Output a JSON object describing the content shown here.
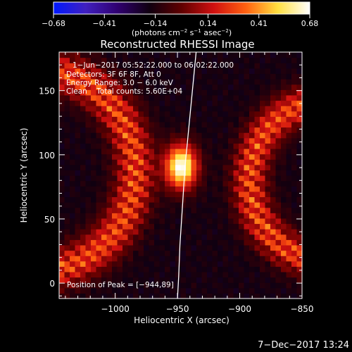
{
  "chart_data": {
    "type": "heatmap",
    "title": "Reconstructed RHESSI Image",
    "xlabel": "Heliocentric X (arcsec)",
    "ylabel": "Heliocentric Y (arcsec)",
    "xlim": [
      -1045,
      -850
    ],
    "ylim": [
      -12,
      180
    ],
    "x_ticks": [
      {
        "value": -1000,
        "label": "−1000"
      },
      {
        "value": -950,
        "label": "−950"
      },
      {
        "value": -900,
        "label": "−900"
      },
      {
        "value": -850,
        "label": "−850"
      }
    ],
    "y_ticks": [
      {
        "value": 0,
        "label": "0"
      },
      {
        "value": 50,
        "label": "50"
      },
      {
        "value": 100,
        "label": "100"
      },
      {
        "value": 150,
        "label": "150"
      }
    ],
    "colorbar": {
      "range": [
        -0.68,
        0.68
      ],
      "ticks": [
        {
          "value": -0.68,
          "label": "−0.68"
        },
        {
          "value": -0.41,
          "label": "−0.41"
        },
        {
          "value": -0.14,
          "label": "−0.14"
        },
        {
          "value": 0.14,
          "label": "0.14"
        },
        {
          "value": 0.41,
          "label": "0.41"
        },
        {
          "value": 0.68,
          "label": "0.68"
        }
      ],
      "unit_main": "(photons cm",
      "unit_sup1": "−2",
      "unit_mid": " s",
      "unit_sup2": "−1",
      "unit_mid2": " asec",
      "unit_sup3": "−2",
      "unit_end": ")",
      "colors": [
        "#0018ff",
        "#4020c0",
        "#300070",
        "#100010",
        "#600000",
        "#d01010",
        "#ff6010",
        "#ffe040",
        "#ffffff"
      ]
    },
    "annotations": {
      "time": "1−Jun−2017 05:52:22.000 to 06:02:22.000",
      "detectors": "Detectors: 3F 6F 8F, Att 0",
      "energy": "Energy Range: 3.0 − 6.0 keV",
      "clean": "Clean    Total counts: 5.60E+04",
      "peak": "Position of Peak = [−944,89]"
    },
    "peak": {
      "x": -944,
      "y": 89,
      "value": 0.68
    },
    "limb_x": [
      -935,
      -938,
      -941,
      -944,
      -946,
      -948,
      -949,
      -950
    ],
    "limb_y": [
      180,
      150,
      120,
      90,
      60,
      30,
      5,
      -12
    ],
    "features": [
      {
        "name": "core",
        "x": -947,
        "y": 91,
        "sx": 9,
        "sy": 12,
        "amp": 1.0
      },
      {
        "name": "left-arc",
        "x": -1062,
        "y": 88,
        "r": 78,
        "w": 11,
        "amp": 0.55
      },
      {
        "name": "right-arc",
        "x": -830,
        "y": 80,
        "r": 62,
        "w": 10,
        "amp": 0.55
      }
    ]
  },
  "footer": {
    "timestamp": "7−Dec−2017 13:24"
  }
}
